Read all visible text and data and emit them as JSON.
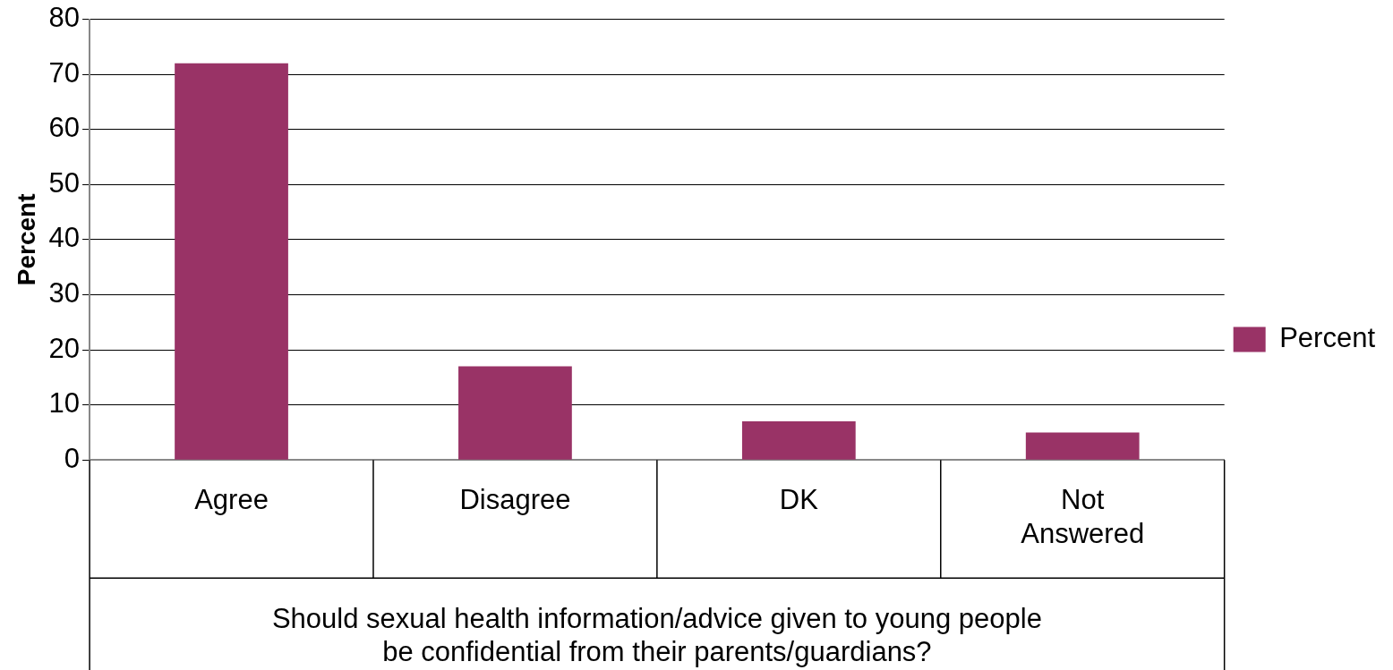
{
  "chart_data": {
    "type": "bar",
    "categories": [
      "Agree",
      "Disagree",
      "DK",
      "Not Answered"
    ],
    "series": [
      {
        "name": "Percent",
        "color": "#993366",
        "values": [
          72,
          17,
          7,
          5
        ]
      }
    ],
    "xlabel": "Should sexual health information/advice given to young people be confidential from their parents/guardians?",
    "ylabel": "Percent",
    "ylim": [
      0,
      80
    ],
    "yticks": [
      0,
      10,
      20,
      30,
      40,
      50,
      60,
      70,
      80
    ],
    "grid": "y",
    "legend": "right"
  }
}
